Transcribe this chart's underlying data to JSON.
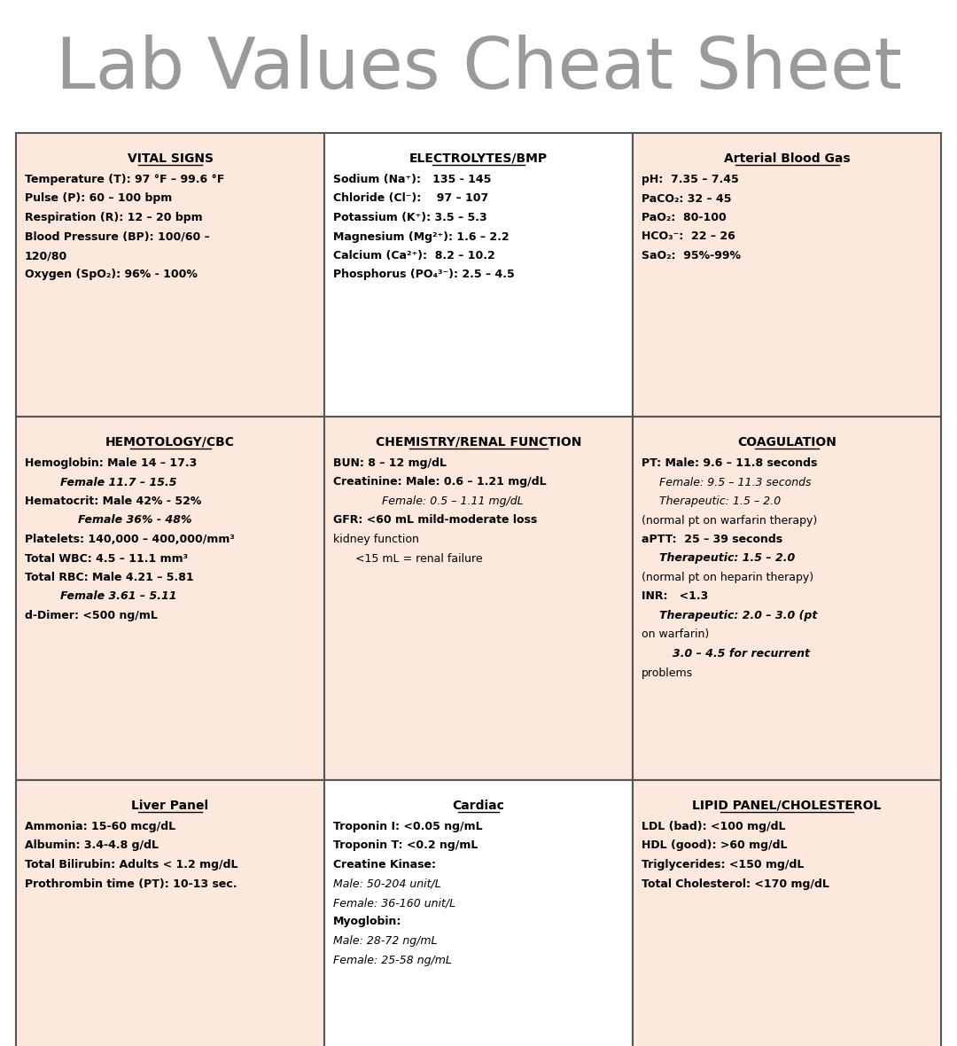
{
  "title": "Lab Values Cheat Sheet",
  "title_color": "#9a9a9a",
  "bg_color": "#ffffff",
  "cell_bg_colors": [
    "#fce8dc",
    "#fce8dc",
    "#fce8dc",
    "#fce8dc",
    "#fce8dc",
    "#fce8dc",
    "#fce8dc",
    "#fce8dc",
    "#fce8dc"
  ],
  "row1_bgs": [
    "#fce8dc",
    "#ffffff",
    "#fce8dc"
  ],
  "row2_bgs": [
    "#fce8dc",
    "#ffffff",
    "#fce8dc"
  ],
  "row3_bgs": [
    "#fce8dc",
    "#ffffff",
    "#fce8dc"
  ],
  "border_color": "#555555",
  "text_color": "#000000",
  "cells": [
    {
      "header": "VITAL SIGNS",
      "header_style": "bold_underline",
      "lines": [
        {
          "type": "bold",
          "text": "Temperature (T): 97 °F – 99.6 °F"
        },
        {
          "type": "bold",
          "text": "Pulse (P): 60 – 100 bpm"
        },
        {
          "type": "bold",
          "text": "Respiration (R): 12 – 20 bpm"
        },
        {
          "type": "bold",
          "text": "Blood Pressure (BP): 100/60 –"
        },
        {
          "type": "bold",
          "indent": 0,
          "text": "120/80"
        },
        {
          "type": "bold",
          "text": "Oxygen (SpO₂): 96% - 100%"
        }
      ]
    },
    {
      "header": "ELECTROLYTES/BMP",
      "header_style": "bold_underline",
      "lines": [
        {
          "type": "bold",
          "text": "Sodium (Na⁺):   135 - 145"
        },
        {
          "type": "bold",
          "text": "Chloride (Cl⁻):    97 – 107"
        },
        {
          "type": "bold",
          "text": "Potassium (K⁺): 3.5 – 5.3"
        },
        {
          "type": "bold",
          "text": "Magnesium (Mg²⁺): 1.6 – 2.2"
        },
        {
          "type": "bold",
          "text": "Calcium (Ca²⁺):  8.2 – 10.2"
        },
        {
          "type": "bold",
          "text": "Phosphorus (PO₄³⁻): 2.5 – 4.5"
        }
      ]
    },
    {
      "header": "Arterial Blood Gas",
      "header_style": "bold_underline",
      "lines": [
        {
          "type": "bold",
          "text": "pH:  7.35 – 7.45"
        },
        {
          "type": "bold",
          "text": "PaCO₂: 32 – 45"
        },
        {
          "type": "bold",
          "text": "PaO₂:  80-100"
        },
        {
          "type": "bold",
          "text": "HCO₃⁻:  22 – 26"
        },
        {
          "type": "bold",
          "text": "SaO₂:  95%-99%"
        }
      ]
    },
    {
      "header": "HEMOTOLOGY/CBC",
      "header_style": "bold_underline",
      "lines": [
        {
          "type": "bold",
          "text": "Hemoglobin: Male 14 – 17.3"
        },
        {
          "type": "bold_italic",
          "indent": 40,
          "text": "Female 11.7 – 15.5"
        },
        {
          "type": "bold",
          "text": "Hematocrit: Male 42% - 52%"
        },
        {
          "type": "bold_italic",
          "indent": 60,
          "text": "Female 36% - 48%"
        },
        {
          "type": "bold",
          "text": "Platelets: 140,000 – 400,000/mm³"
        },
        {
          "type": "bold",
          "text": "Total WBC: 4.5 – 11.1 mm³"
        },
        {
          "type": "bold",
          "text": "Total RBC: Male 4.21 – 5.81"
        },
        {
          "type": "bold_italic",
          "indent": 40,
          "text": "Female 3.61 – 5.11"
        },
        {
          "type": "bold",
          "text": "d-Dimer: <500 ng/mL"
        }
      ]
    },
    {
      "header": "CHEMISTRY/RENAL FUNCTION",
      "header_style": "bold_underline",
      "lines": [
        {
          "type": "bold",
          "text": "BUN: 8 – 12 mg/dL"
        },
        {
          "type": "bold",
          "text": "Creatinine: Male: 0.6 – 1.21 mg/dL"
        },
        {
          "type": "italic",
          "indent": 55,
          "text": "Female: 0.5 – 1.11 mg/dL"
        },
        {
          "type": "bold",
          "text": "GFR: <60 mL mild-moderate loss"
        },
        {
          "type": "normal",
          "indent": 0,
          "text": "kidney function"
        },
        {
          "type": "normal",
          "indent": 25,
          "text": "<15 mL = renal failure"
        }
      ]
    },
    {
      "header": "COAGULATION",
      "header_style": "bold_underline",
      "lines": [
        {
          "type": "bold",
          "text": "PT: Male: 9.6 – 11.8 seconds"
        },
        {
          "type": "italic",
          "indent": 20,
          "text": "Female: 9.5 – 11.3 seconds"
        },
        {
          "type": "italic",
          "indent": 20,
          "text": "Therapeutic: 1.5 – 2.0"
        },
        {
          "type": "normal",
          "indent": 0,
          "text": "(normal pt on warfarin therapy)"
        },
        {
          "type": "bold",
          "text": "aPTT:  25 – 39 seconds"
        },
        {
          "type": "bold_italic",
          "indent": 20,
          "text": "Therapeutic: 1.5 – 2.0"
        },
        {
          "type": "normal",
          "indent": 0,
          "text": "(normal pt on heparin therapy)"
        },
        {
          "type": "bold",
          "text": "INR:   <1.3"
        },
        {
          "type": "bold_italic",
          "indent": 20,
          "text": "Therapeutic: 2.0 – 3.0 (pt"
        },
        {
          "type": "normal",
          "indent": 0,
          "text": "on warfarin)"
        },
        {
          "type": "bold_italic",
          "indent": 35,
          "text": "3.0 – 4.5 for recurrent"
        },
        {
          "type": "normal",
          "indent": 0,
          "text": "problems"
        }
      ]
    },
    {
      "header": "Liver Panel",
      "header_style": "bold_underline",
      "lines": [
        {
          "type": "bold",
          "text": "Ammonia: 15-60 mcg/dL"
        },
        {
          "type": "bold",
          "text": "Albumin: 3.4-4.8 g/dL"
        },
        {
          "type": "bold",
          "text": "Total Bilirubin: Adults < 1.2 mg/dL"
        },
        {
          "type": "bold",
          "text": "Prothrombin time (PT): 10-13 sec."
        }
      ]
    },
    {
      "header": "Cardiac",
      "header_style": "bold_underline",
      "lines": [
        {
          "type": "bold",
          "text": "Troponin I: <0.05 ng/mL"
        },
        {
          "type": "bold",
          "text": "Troponin T: <0.2 ng/mL"
        },
        {
          "type": "bold",
          "text": "Creatine Kinase:"
        },
        {
          "type": "italic",
          "indent": 0,
          "text": "Male: 50-204 unit/L"
        },
        {
          "type": "italic",
          "indent": 0,
          "text": "Female: 36-160 unit/L"
        },
        {
          "type": "bold",
          "text": "Myoglobin:"
        },
        {
          "type": "italic",
          "indent": 0,
          "text": "Male: 28-72 ng/mL"
        },
        {
          "type": "italic",
          "indent": 0,
          "text": "Female: 25-58 ng/mL"
        }
      ]
    },
    {
      "header": "LIPID PANEL/CHOLESTEROL",
      "header_style": "bold_underline",
      "lines": [
        {
          "type": "bold",
          "text": "LDL (bad): <100 mg/dL"
        },
        {
          "type": "bold",
          "text": "HDL (good): >60 mg/dL"
        },
        {
          "type": "bold",
          "text": "Triglycerides: <150 mg/dL"
        },
        {
          "type": "bold",
          "text": "Total Cholesterol: <170 mg/dL"
        }
      ]
    }
  ],
  "grid_bgs": [
    [
      "#fce8dc",
      "#ffffff",
      "#fce8dc"
    ],
    [
      "#fce8dc",
      "#fce8dc",
      "#fce8dc"
    ],
    [
      "#fce8dc",
      "#ffffff",
      "#fce8dc"
    ]
  ]
}
